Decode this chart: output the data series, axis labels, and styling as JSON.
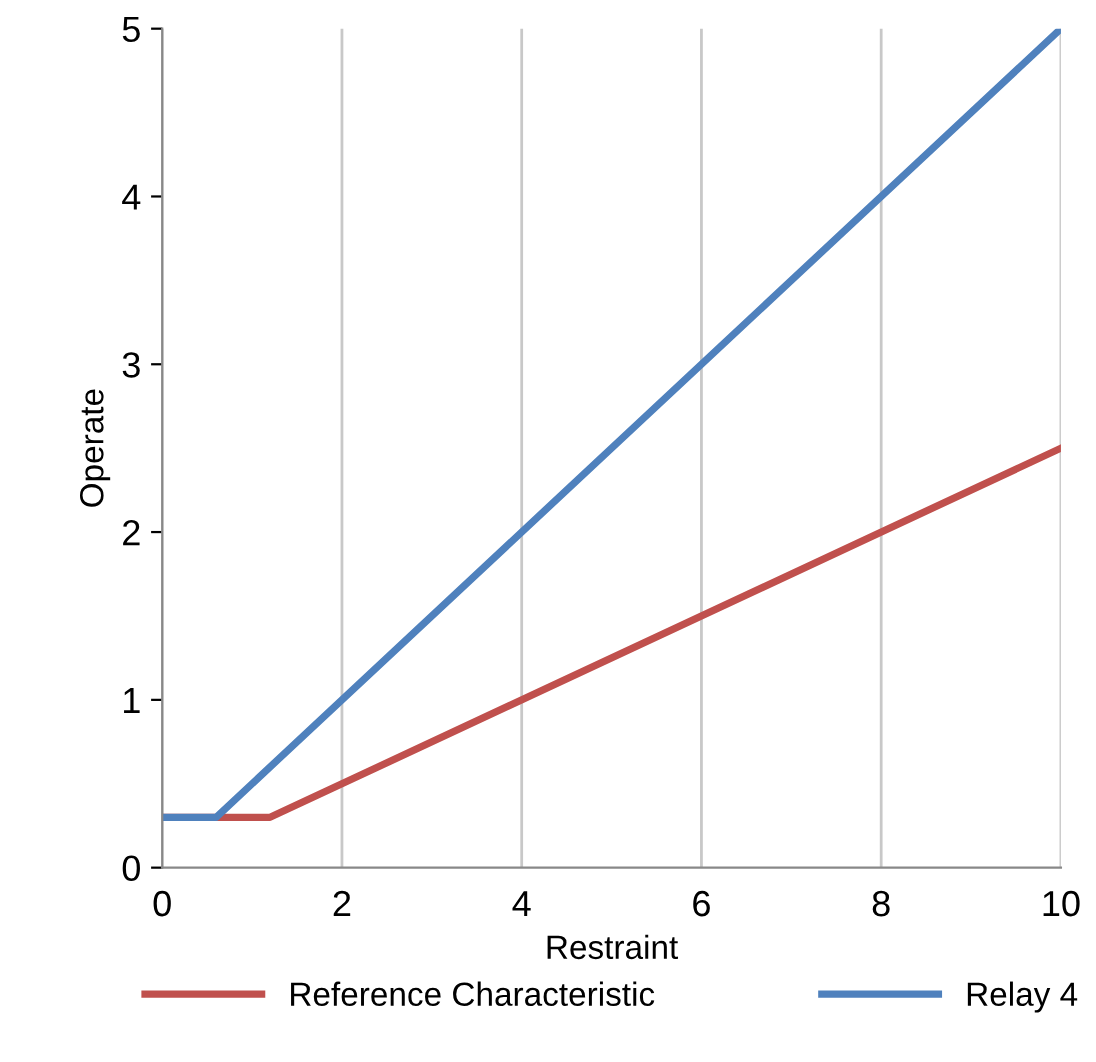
{
  "chart_data": {
    "type": "line",
    "xlabel": "Restraint",
    "ylabel": "Operate",
    "series": [
      {
        "name": "Reference Characteristic",
        "color": "#c0504d",
        "x": [
          0,
          1.2,
          10
        ],
        "values": [
          0.3,
          0.3,
          2.5
        ]
      },
      {
        "name": "Relay 4",
        "color": "#4f81bd",
        "x": [
          0,
          0.6,
          10
        ],
        "values": [
          0.3,
          0.3,
          5
        ]
      }
    ],
    "xlim": [
      0,
      10
    ],
    "xticks": [
      0,
      2,
      4,
      6,
      8,
      10
    ],
    "ylim": [
      0,
      5
    ],
    "yticks": [
      0,
      1,
      2,
      3,
      4,
      5
    ],
    "grid": "x",
    "legend": "bottom",
    "marker": "none",
    "line_style": "solid"
  }
}
